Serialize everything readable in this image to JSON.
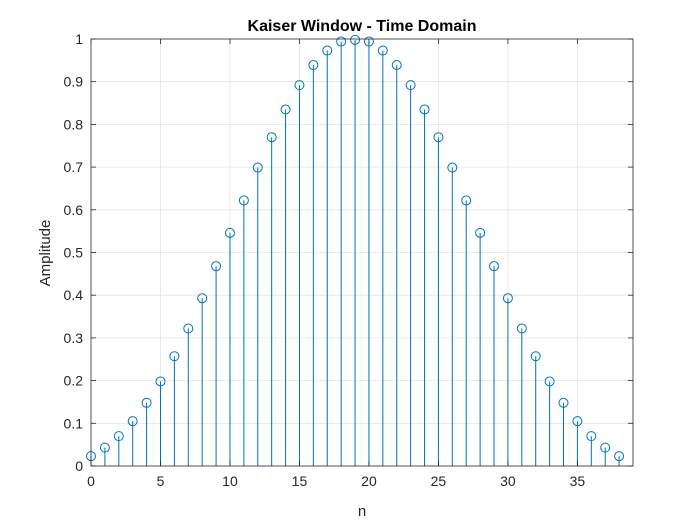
{
  "chart_data": {
    "type": "stem",
    "title": "Kaiser Window - Time Domain",
    "xlabel": "n",
    "ylabel": "Amplitude",
    "xlim": [
      0,
      39
    ],
    "ylim": [
      0,
      1
    ],
    "xticks": [
      0,
      5,
      10,
      15,
      20,
      25,
      30,
      35
    ],
    "yticks": [
      0,
      0.1,
      0.2,
      0.3,
      0.4,
      0.5,
      0.6,
      0.7,
      0.8,
      0.9,
      1
    ],
    "ytick_labels": [
      "0",
      "0.1",
      "0.2",
      "0.3",
      "0.4",
      "0.5",
      "0.6",
      "0.7",
      "0.8",
      "0.9",
      "1"
    ],
    "grid": true,
    "color": "#0072BD",
    "x": [
      0,
      1,
      2,
      3,
      4,
      5,
      6,
      7,
      8,
      9,
      10,
      11,
      12,
      13,
      14,
      15,
      16,
      17,
      18,
      19,
      20,
      21,
      22,
      23,
      24,
      25,
      26,
      27,
      28,
      29,
      30,
      31,
      32,
      33,
      34,
      35,
      36,
      37,
      38
    ],
    "values": [
      0.023,
      0.043,
      0.07,
      0.105,
      0.148,
      0.198,
      0.257,
      0.322,
      0.393,
      0.468,
      0.546,
      0.622,
      0.699,
      0.77,
      0.835,
      0.892,
      0.939,
      0.973,
      0.994,
      0.998,
      0.994,
      0.973,
      0.939,
      0.892,
      0.835,
      0.77,
      0.699,
      0.622,
      0.546,
      0.468,
      0.393,
      0.322,
      0.257,
      0.198,
      0.148,
      0.105,
      0.07,
      0.043,
      0.023
    ]
  }
}
